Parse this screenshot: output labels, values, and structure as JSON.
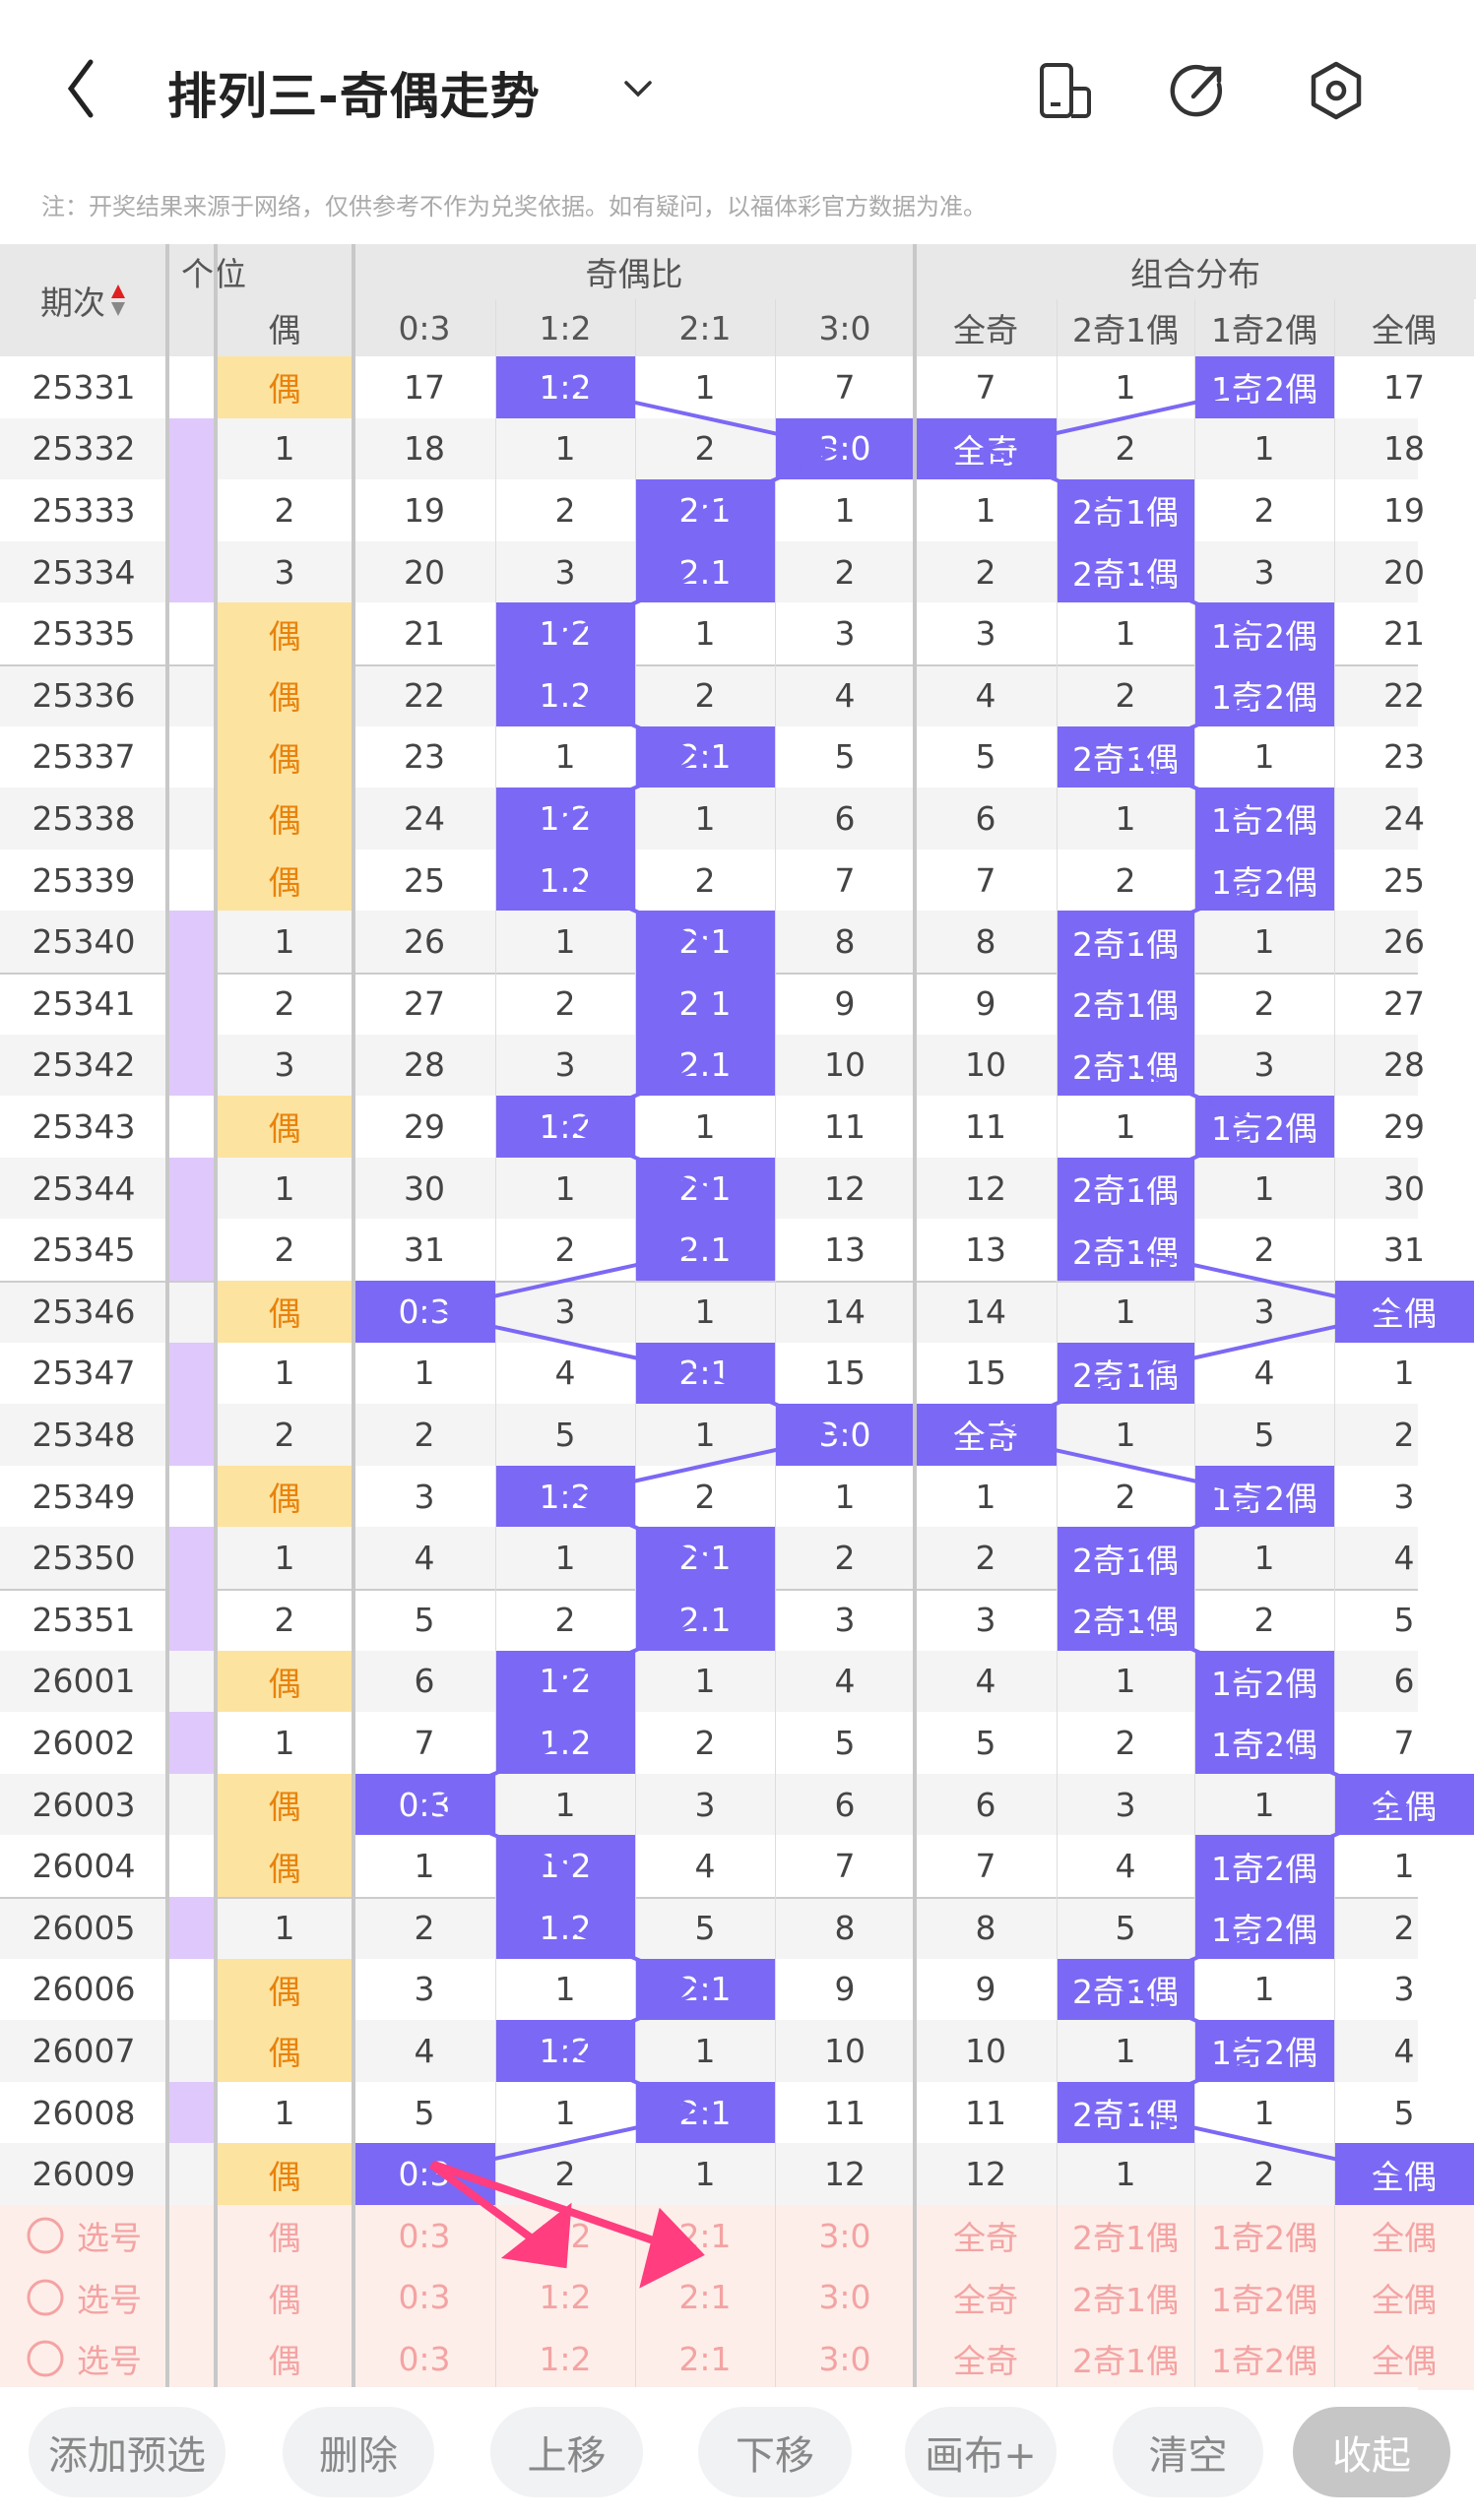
{
  "header": {
    "title": "排列三-奇偶走势",
    "icons": [
      "back-icon",
      "chevron-down-icon",
      "phone-layout-icon",
      "share-icon",
      "settings-icon"
    ]
  },
  "note": "注：开奖结果来源于网络，仅供参考不作为兑奖依据。如有疑问，以福体彩官方数据为准。",
  "table": {
    "col_issue": "期次",
    "group_ge": "个位",
    "ge_label": "偶",
    "group_ratio": "奇偶比",
    "ratio_labels": [
      "0:3",
      "1:2",
      "2:1",
      "3:0"
    ],
    "group_combo": "组合分布",
    "combo_labels": [
      "全奇",
      "2奇1偶",
      "1奇2偶",
      "全偶"
    ],
    "rows": [
      {
        "issue": "25331",
        "ge": "偶",
        "ratio": [
          17,
          null,
          1,
          7
        ],
        "combo": [
          7,
          1,
          null,
          17
        ]
      },
      {
        "issue": "25332",
        "ge": "1",
        "ratio": [
          18,
          1,
          2,
          null
        ],
        "combo": [
          null,
          2,
          1,
          18
        ]
      },
      {
        "issue": "25333",
        "ge": "2",
        "ratio": [
          19,
          2,
          null,
          1
        ],
        "combo": [
          1,
          null,
          2,
          19
        ]
      },
      {
        "issue": "25334",
        "ge": "3",
        "ratio": [
          20,
          3,
          null,
          2
        ],
        "combo": [
          2,
          null,
          3,
          20
        ]
      },
      {
        "issue": "25335",
        "ge": "偶",
        "ratio": [
          21,
          null,
          1,
          3
        ],
        "combo": [
          3,
          1,
          null,
          21
        ]
      },
      {
        "issue": "25336",
        "ge": "偶",
        "ratio": [
          22,
          null,
          2,
          4
        ],
        "combo": [
          4,
          2,
          null,
          22
        ]
      },
      {
        "issue": "25337",
        "ge": "偶",
        "ratio": [
          23,
          1,
          null,
          5
        ],
        "combo": [
          5,
          null,
          1,
          23
        ]
      },
      {
        "issue": "25338",
        "ge": "偶",
        "ratio": [
          24,
          null,
          1,
          6
        ],
        "combo": [
          6,
          1,
          null,
          24
        ]
      },
      {
        "issue": "25339",
        "ge": "偶",
        "ratio": [
          25,
          null,
          2,
          7
        ],
        "combo": [
          7,
          2,
          null,
          25
        ]
      },
      {
        "issue": "25340",
        "ge": "1",
        "ratio": [
          26,
          1,
          null,
          8
        ],
        "combo": [
          8,
          null,
          1,
          26
        ]
      },
      {
        "issue": "25341",
        "ge": "2",
        "ratio": [
          27,
          2,
          null,
          9
        ],
        "combo": [
          9,
          null,
          2,
          27
        ]
      },
      {
        "issue": "25342",
        "ge": "3",
        "ratio": [
          28,
          3,
          null,
          10
        ],
        "combo": [
          10,
          null,
          3,
          28
        ]
      },
      {
        "issue": "25343",
        "ge": "偶",
        "ratio": [
          29,
          null,
          1,
          11
        ],
        "combo": [
          11,
          1,
          null,
          29
        ]
      },
      {
        "issue": "25344",
        "ge": "1",
        "ratio": [
          30,
          1,
          null,
          12
        ],
        "combo": [
          12,
          null,
          1,
          30
        ]
      },
      {
        "issue": "25345",
        "ge": "2",
        "ratio": [
          31,
          2,
          null,
          13
        ],
        "combo": [
          13,
          null,
          2,
          31
        ]
      },
      {
        "issue": "25346",
        "ge": "偶",
        "ratio": [
          null,
          3,
          1,
          14
        ],
        "combo": [
          14,
          1,
          3,
          null
        ]
      },
      {
        "issue": "25347",
        "ge": "1",
        "ratio": [
          1,
          4,
          null,
          15
        ],
        "combo": [
          15,
          null,
          4,
          1
        ]
      },
      {
        "issue": "25348",
        "ge": "2",
        "ratio": [
          2,
          5,
          1,
          null
        ],
        "combo": [
          null,
          1,
          5,
          2
        ]
      },
      {
        "issue": "25349",
        "ge": "偶",
        "ratio": [
          3,
          null,
          2,
          1
        ],
        "combo": [
          1,
          2,
          null,
          3
        ]
      },
      {
        "issue": "25350",
        "ge": "1",
        "ratio": [
          4,
          1,
          null,
          2
        ],
        "combo": [
          2,
          null,
          1,
          4
        ]
      },
      {
        "issue": "25351",
        "ge": "2",
        "ratio": [
          5,
          2,
          null,
          3
        ],
        "combo": [
          3,
          null,
          2,
          5
        ]
      },
      {
        "issue": "26001",
        "ge": "偶",
        "ratio": [
          6,
          null,
          1,
          4
        ],
        "combo": [
          4,
          1,
          null,
          6
        ]
      },
      {
        "issue": "26002",
        "ge": "1",
        "ratio": [
          7,
          null,
          2,
          5
        ],
        "combo": [
          5,
          2,
          null,
          7
        ]
      },
      {
        "issue": "26003",
        "ge": "偶",
        "ratio": [
          null,
          1,
          3,
          6
        ],
        "combo": [
          6,
          3,
          1,
          null
        ]
      },
      {
        "issue": "26004",
        "ge": "偶",
        "ratio": [
          1,
          null,
          4,
          7
        ],
        "combo": [
          7,
          4,
          null,
          1
        ]
      },
      {
        "issue": "26005",
        "ge": "1",
        "ratio": [
          2,
          null,
          5,
          8
        ],
        "combo": [
          8,
          5,
          null,
          2
        ]
      },
      {
        "issue": "26006",
        "ge": "偶",
        "ratio": [
          3,
          1,
          null,
          9
        ],
        "combo": [
          9,
          null,
          1,
          3
        ]
      },
      {
        "issue": "26007",
        "ge": "偶",
        "ratio": [
          4,
          null,
          1,
          10
        ],
        "combo": [
          10,
          1,
          null,
          4
        ]
      },
      {
        "issue": "26008",
        "ge": "1",
        "ratio": [
          5,
          1,
          null,
          11
        ],
        "combo": [
          11,
          null,
          1,
          5
        ]
      },
      {
        "issue": "26009",
        "ge": "偶",
        "ratio": [
          null,
          2,
          1,
          12
        ],
        "combo": [
          12,
          1,
          2,
          null
        ]
      }
    ],
    "preselect_label": "选号",
    "preselect_count": 3
  },
  "buttons": [
    "添加预选",
    "删除",
    "上移",
    "下移",
    "画布+",
    "清空",
    "收起"
  ],
  "colors": {
    "hit": "#7b68f5",
    "ge_hit_bg": "#fde3a0",
    "ge_hit_text": "#e8820c",
    "ge_miss": "#dfc8fb",
    "preselect_bg": "#fdeee9",
    "preselect_text": "#f4a3a3",
    "arrow": "#ff3d7f",
    "sort_up": "#e02020"
  }
}
